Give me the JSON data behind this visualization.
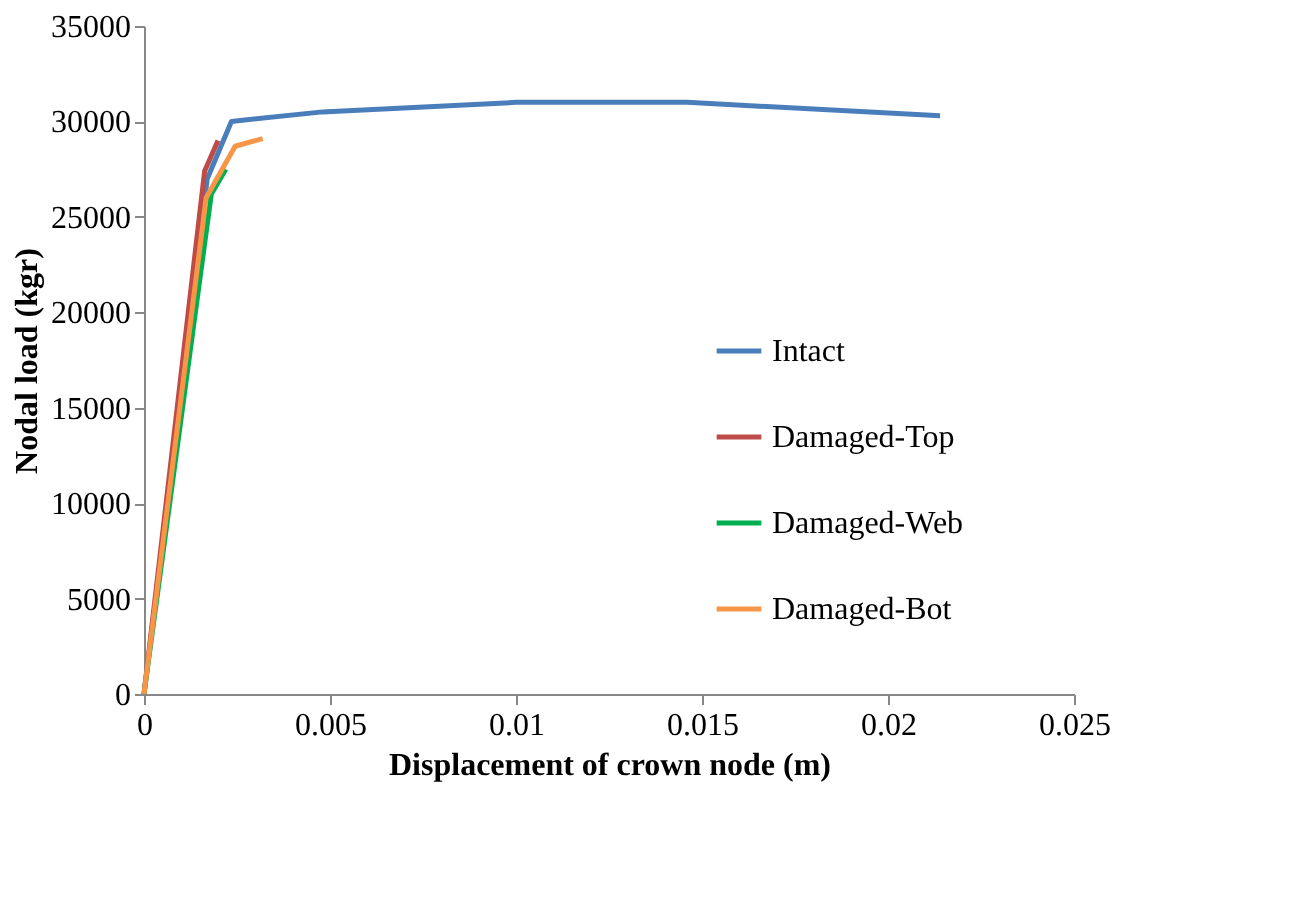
{
  "chart_data": {
    "type": "line",
    "xlabel": "Displacement of crown node (m)",
    "ylabel": "Nodal load (kgr)",
    "xlim": [
      0,
      0.025
    ],
    "xticks": [
      0,
      0.005,
      0.01,
      0.015,
      0.02,
      0.025
    ],
    "ylim": [
      0,
      35000
    ],
    "yticks": [
      0,
      5000,
      10000,
      15000,
      20000,
      25000,
      30000,
      35000
    ],
    "grid": false,
    "legend": "right",
    "marker": "none",
    "line_style": "solid",
    "series": [
      {
        "name": "Intact",
        "color": "#4a7ebb",
        "x": [
          0,
          0.0017,
          0.00235,
          0.0048,
          0.01,
          0.0146,
          0.0214
        ],
        "values": [
          0,
          27000,
          30000,
          30500,
          31000,
          31000,
          30300
        ]
      },
      {
        "name": "Damaged-Top",
        "color": "#be4b48",
        "x": [
          0,
          0.00163,
          0.00199
        ],
        "values": [
          0,
          27400,
          29000
        ]
      },
      {
        "name": "Damaged-Web",
        "color": "#00b050",
        "x": [
          0,
          0.00181,
          0.0022
        ],
        "values": [
          0,
          26200,
          27500
        ]
      },
      {
        "name": "Damaged-Bot",
        "color": "#f79646",
        "x": [
          0,
          0.00167,
          0.00245,
          0.00319
        ],
        "values": [
          0,
          26000,
          28700,
          29100
        ]
      }
    ]
  }
}
